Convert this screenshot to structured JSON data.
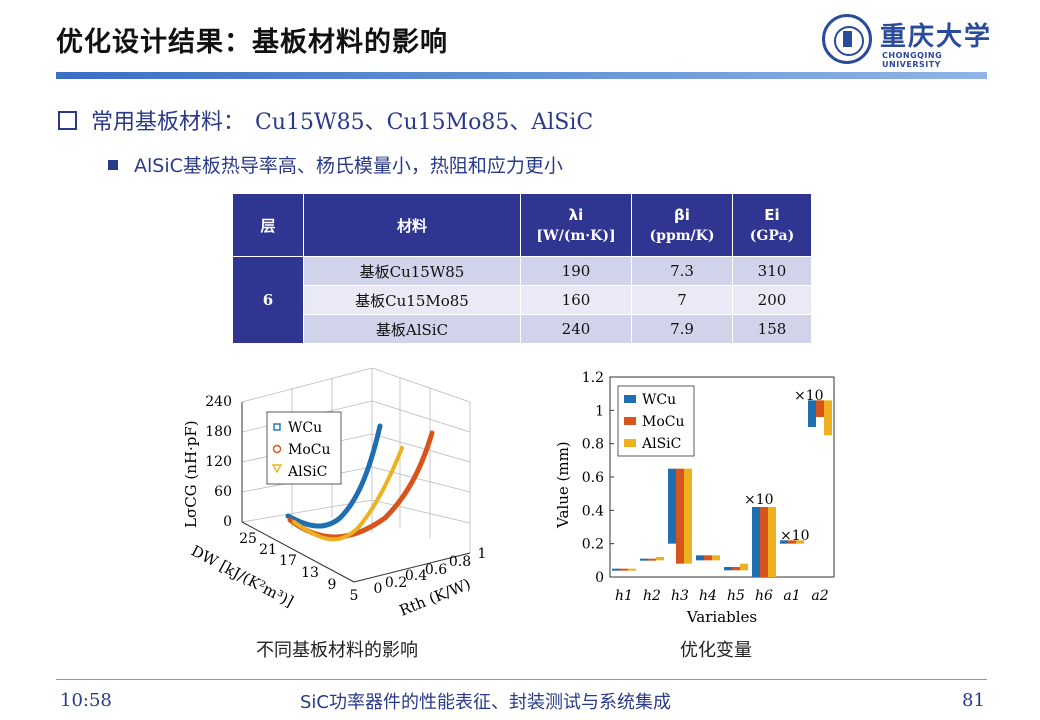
{
  "header": {
    "title": "优化设计结果：基板材料的影响",
    "logo_name": "重庆大学",
    "logo_sub": "CHONGQING UNIVERSITY"
  },
  "bullets": {
    "main_label": "常用基板材料：",
    "main_materials": "Cu15W85、Cu15Mo85、AlSiC",
    "sub": "AlSiC基板热导率高、杨氏模量小，热阻和应力更小"
  },
  "table": {
    "headers": {
      "layer": "层",
      "material": "材料",
      "lambda": "λi",
      "lambda_unit": "[W/(m·K)]",
      "beta": "βi",
      "beta_unit": "(ppm/K)",
      "e": "Ei",
      "e_unit": "(GPa)"
    },
    "layer_value": "6",
    "rows": [
      {
        "material": "基板Cu15W85",
        "lambda": "190",
        "beta": "7.3",
        "e": "310"
      },
      {
        "material": "基板Cu15Mo85",
        "lambda": "160",
        "beta": "7",
        "e": "200"
      },
      {
        "material": "基板AlSiC",
        "lambda": "240",
        "beta": "7.9",
        "e": "158"
      }
    ]
  },
  "colors": {
    "wcu": "#1f6fb0",
    "mocu": "#d9541a",
    "alsic": "#edb120",
    "accent": "#2f3591"
  },
  "plot3d": {
    "z_ticks": [
      "0",
      "60",
      "120",
      "180",
      "240"
    ],
    "z_label": "LσCG (nH·pF)",
    "x_ticks": [
      "0",
      "0.2",
      "0.4",
      "0.6",
      "0.8",
      "1"
    ],
    "x_label": "Rth (K/W)",
    "y_ticks": [
      "5",
      "9",
      "13",
      "17",
      "21",
      "25"
    ],
    "y_label": "DW [kJ/(K²m³)]",
    "legend": [
      "WCu",
      "MoCu",
      "AlSiC"
    ]
  },
  "caption_left": "不同基板材料的影响",
  "chart_data": {
    "type": "bar",
    "categories": [
      "h1",
      "h2",
      "h3",
      "h4",
      "h5",
      "h6",
      "a1",
      "a2"
    ],
    "ylabel": "Value (mm)",
    "xlabel": "Variables",
    "ylim": [
      0,
      1.2
    ],
    "yticks": [
      "0",
      "0.2",
      "0.4",
      "0.6",
      "0.8",
      "1",
      "1.2"
    ],
    "series": [
      {
        "name": "WCu",
        "values": [
          0.05,
          0.11,
          0.65,
          0.13,
          0.06,
          0.42,
          0.22,
          1.06
        ],
        "lows": [
          0.04,
          0.1,
          0.2,
          0.1,
          0.04,
          0.0,
          0.2,
          0.9
        ]
      },
      {
        "name": "MoCu",
        "values": [
          0.05,
          0.11,
          0.65,
          0.13,
          0.06,
          0.42,
          0.22,
          1.06
        ],
        "lows": [
          0.04,
          0.1,
          0.08,
          0.1,
          0.04,
          0.0,
          0.2,
          0.96
        ]
      },
      {
        "name": "AlSiC",
        "values": [
          0.05,
          0.12,
          0.65,
          0.13,
          0.08,
          0.42,
          0.22,
          1.06
        ],
        "lows": [
          0.04,
          0.1,
          0.08,
          0.1,
          0.04,
          0.0,
          0.2,
          0.85
        ]
      }
    ],
    "annotations": [
      "×10",
      "×10",
      "×10"
    ]
  },
  "caption_right": "优化变量",
  "footer": {
    "time": "10:58",
    "center": "SiC功率器件的性能表征、封装测试与系统集成",
    "page": "81"
  }
}
